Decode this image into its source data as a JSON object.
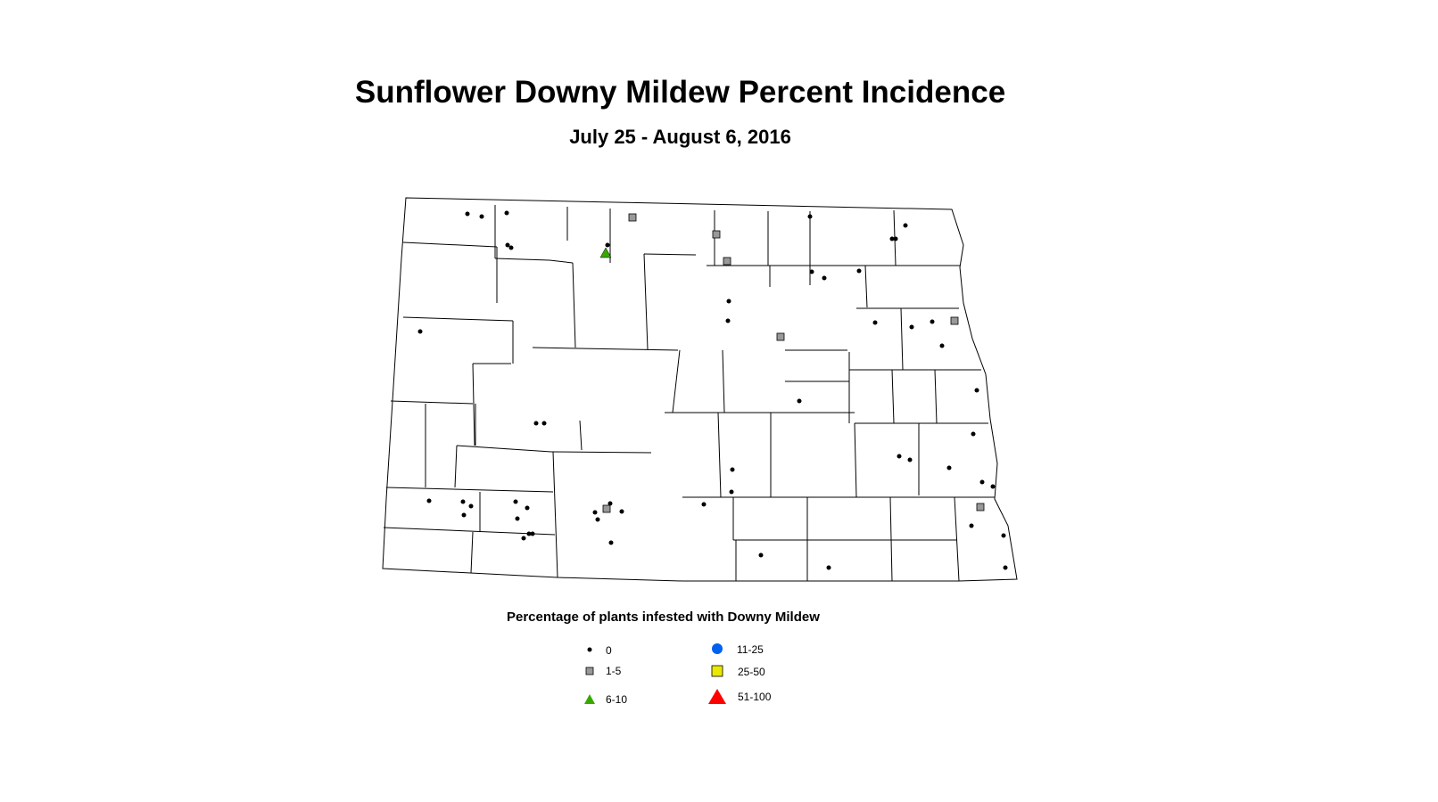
{
  "title": "Sunflower Downy Mildew Percent Incidence",
  "subtitle": "July 25 - August 6, 2016",
  "legend": {
    "title": "Percentage of plants infested with Downy Mildew",
    "items": [
      {
        "label": "0",
        "symbol": "dot",
        "color": "#000000"
      },
      {
        "label": "1-5",
        "symbol": "square",
        "color": "#999999"
      },
      {
        "label": "6-10",
        "symbol": "triangle",
        "color": "#38a800"
      },
      {
        "label": "11-25",
        "symbol": "circle",
        "color": "#0060f0"
      },
      {
        "label": "25-50",
        "symbol": "square",
        "color": "#e8e800"
      },
      {
        "label": "51-100",
        "symbol": "triangle",
        "color": "#ff0000"
      }
    ]
  }
}
